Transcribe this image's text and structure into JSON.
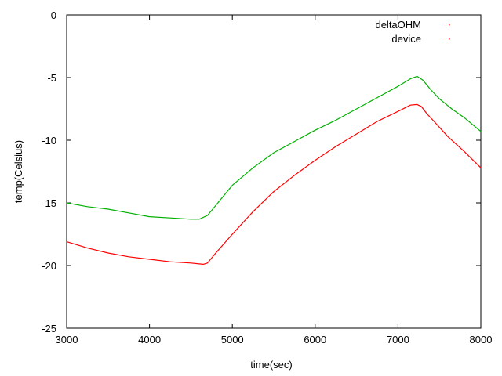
{
  "chart_data": {
    "type": "line",
    "title": "",
    "xlabel": "time(sec)",
    "ylabel": "temp(Celsius)",
    "xlim": [
      3000,
      8000
    ],
    "ylim": [
      -25,
      0
    ],
    "x_ticks": [
      3000,
      4000,
      5000,
      6000,
      7000,
      8000
    ],
    "y_ticks": [
      0,
      -5,
      -10,
      -15,
      -20,
      -25
    ],
    "x_tick_labels": [
      "3000",
      "4000",
      "5000",
      "6000",
      "7000",
      "8000"
    ],
    "y_tick_labels": [
      "0",
      "-5",
      "-10",
      "-15",
      "-20",
      "-25"
    ],
    "grid": false,
    "legend_position": "top-right",
    "series": [
      {
        "name": "deltaOHM",
        "color": "#ff0000",
        "legend_color": "#ff0000",
        "x": [
          3000,
          3250,
          3500,
          3750,
          4000,
          4250,
          4500,
          4650,
          4700,
          4800,
          5000,
          5250,
          5500,
          5750,
          6000,
          6250,
          6500,
          6750,
          7000,
          7150,
          7230,
          7280,
          7350,
          7450,
          7600,
          7800,
          8000
        ],
        "y": [
          -18.1,
          -18.6,
          -19.0,
          -19.3,
          -19.5,
          -19.7,
          -19.8,
          -19.9,
          -19.8,
          -19.0,
          -17.5,
          -15.7,
          -14.1,
          -12.8,
          -11.6,
          -10.5,
          -9.5,
          -8.5,
          -7.7,
          -7.2,
          -7.15,
          -7.3,
          -7.9,
          -8.6,
          -9.7,
          -10.9,
          -12.2
        ]
      },
      {
        "name": "device",
        "color": "#00b000",
        "legend_color": "#ff0000",
        "x": [
          3000,
          3250,
          3500,
          3750,
          4000,
          4250,
          4500,
          4600,
          4700,
          4800,
          5000,
          5250,
          5500,
          5750,
          6000,
          6250,
          6500,
          6750,
          7000,
          7150,
          7230,
          7300,
          7400,
          7500,
          7650,
          7800,
          8000
        ],
        "y": [
          -15.0,
          -15.3,
          -15.5,
          -15.8,
          -16.1,
          -16.2,
          -16.3,
          -16.3,
          -16.0,
          -15.2,
          -13.6,
          -12.2,
          -11.0,
          -10.1,
          -9.2,
          -8.4,
          -7.5,
          -6.6,
          -5.7,
          -5.1,
          -4.9,
          -5.2,
          -6.0,
          -6.7,
          -7.5,
          -8.2,
          -9.3
        ]
      }
    ]
  }
}
